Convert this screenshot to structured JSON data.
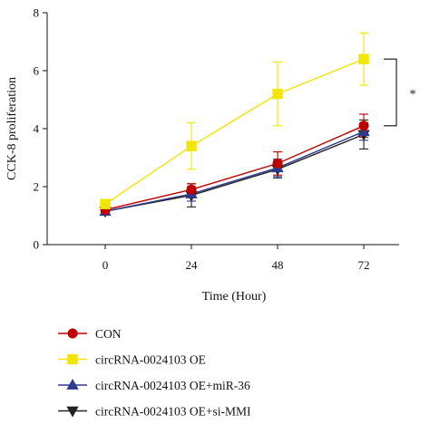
{
  "chart_data": {
    "type": "line",
    "xlabel": "Time (Hour)",
    "ylabel": "CCK-8 proliferation",
    "x": [
      0,
      24,
      48,
      72
    ],
    "xticks": [
      "0",
      "24",
      "48",
      "72"
    ],
    "yticks": [
      "0",
      "2",
      "4",
      "6",
      "8"
    ],
    "ylim": [
      0,
      8
    ],
    "grid": false,
    "legend_position": "bottom",
    "series": [
      {
        "name": "CON",
        "color": "#c00000",
        "marker": "circle",
        "values": [
          1.2,
          1.9,
          2.8,
          4.1
        ],
        "errors": [
          0.1,
          0.2,
          0.4,
          0.4
        ]
      },
      {
        "name": "circRNA-0024103 OE",
        "color": "#f2e600",
        "marker": "square",
        "values": [
          1.4,
          3.4,
          5.2,
          6.4
        ],
        "errors": [
          0.1,
          0.8,
          1.1,
          0.9
        ]
      },
      {
        "name": "circRNA-0024103 OE+miR-36",
        "color": "#2e3a8c",
        "marker": "triangle-up",
        "values": [
          1.15,
          1.75,
          2.65,
          3.9
        ],
        "errors": [
          0.1,
          0.25,
          0.3,
          0.3
        ]
      },
      {
        "name": "circRNA-0024103 OE+si-MMI",
        "color": "#222222",
        "marker": "triangle-down",
        "values": [
          1.15,
          1.7,
          2.6,
          3.8
        ],
        "errors": [
          0.1,
          0.4,
          0.3,
          0.5
        ]
      }
    ],
    "annotations": [
      {
        "text": "*",
        "between_series": [
          1,
          0
        ],
        "at_x": 72
      }
    ]
  }
}
